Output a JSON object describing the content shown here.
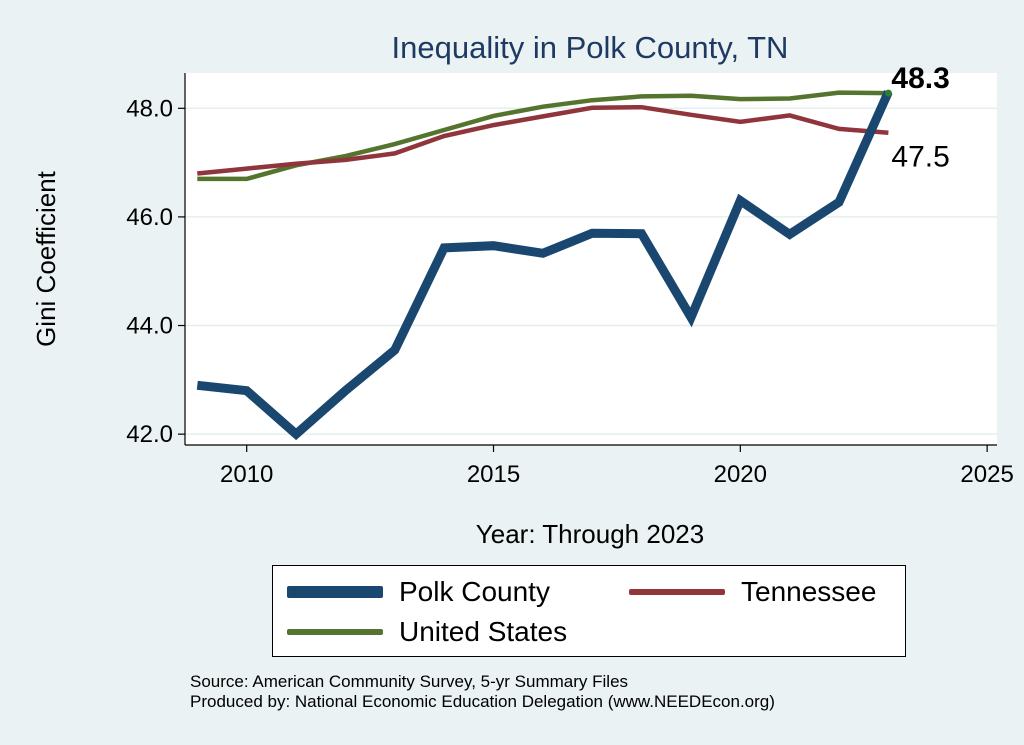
{
  "chart_data": {
    "type": "line",
    "title": "Inequality in Polk County, TN",
    "xlabel": "Year: Through 2023",
    "ylabel": "Gini Coefficient",
    "xlim": [
      2008.75,
      2025.2
    ],
    "ylim": [
      41.8,
      48.65
    ],
    "xticks": [
      2010,
      2015,
      2020,
      2025
    ],
    "xtick_labels": [
      "2010",
      "2015",
      "2020",
      "2025"
    ],
    "yticks": [
      42,
      44,
      46,
      48
    ],
    "ytick_labels": [
      "42.0",
      "44.0",
      "46.0",
      "48.0"
    ],
    "grid": true,
    "x": [
      2009,
      2010,
      2011,
      2012,
      2013,
      2014,
      2015,
      2016,
      2017,
      2018,
      2019,
      2020,
      2021,
      2022,
      2023
    ],
    "series": [
      {
        "name": "Polk County",
        "color": "#1a476f",
        "values": [
          42.9,
          42.8,
          42.0,
          42.8,
          43.55,
          45.43,
          45.47,
          45.33,
          45.7,
          45.69,
          44.15,
          46.3,
          45.68,
          46.27,
          48.3
        ]
      },
      {
        "name": "Tennessee",
        "color": "#90353b",
        "values": [
          46.8,
          46.89,
          46.98,
          47.05,
          47.17,
          47.49,
          47.69,
          47.85,
          48.01,
          48.02,
          47.88,
          47.75,
          47.87,
          47.62,
          47.55
        ]
      },
      {
        "name": "United States",
        "color": "#55752f",
        "values": [
          46.7,
          46.7,
          46.95,
          47.12,
          47.34,
          47.6,
          47.86,
          48.03,
          48.15,
          48.22,
          48.23,
          48.17,
          48.18,
          48.29,
          48.28
        ]
      }
    ],
    "end_labels": [
      {
        "series": "Polk County",
        "text": "48.3"
      },
      {
        "series": "Tennessee",
        "text": "47.5"
      }
    ],
    "legend_position": "bottom"
  },
  "legend": [
    {
      "label": "Polk County",
      "color": "#1a476f"
    },
    {
      "label": "Tennessee",
      "color": "#90353b"
    },
    {
      "label": "United States",
      "color": "#55752f"
    }
  ],
  "source": {
    "line1": "Source: American Community Survey, 5-yr Summary Files",
    "line2": "Produced by: National Economic Education Delegation (www.NEEDEcon.org)"
  }
}
